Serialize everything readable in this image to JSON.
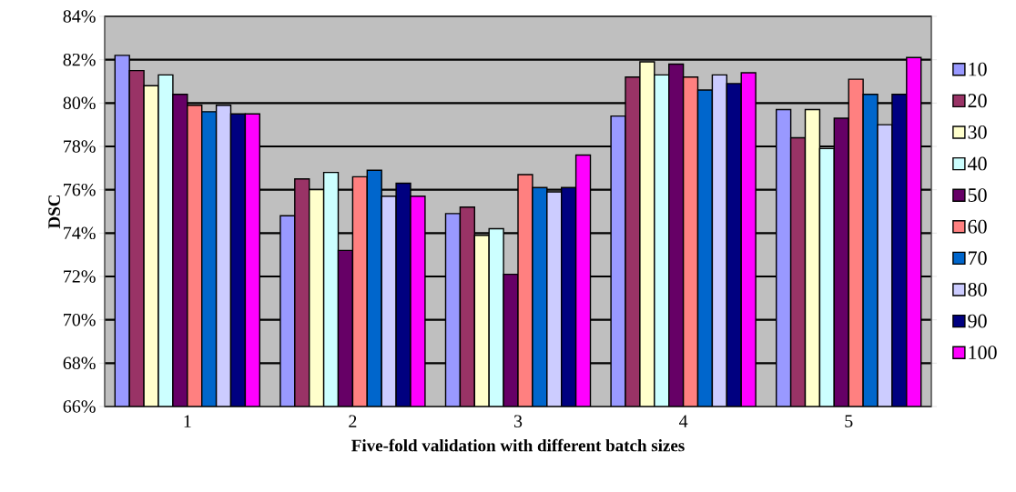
{
  "chart_data": {
    "type": "bar",
    "xlabel": "Five-fold validation with different batch sizes",
    "ylabel": "DSC",
    "categories": [
      "1",
      "2",
      "3",
      "4",
      "5"
    ],
    "series": [
      {
        "name": "10",
        "color": "#9999ff",
        "values": [
          82.2,
          74.8,
          74.9,
          79.4,
          79.7
        ]
      },
      {
        "name": "20",
        "color": "#993366",
        "values": [
          81.5,
          76.5,
          75.2,
          81.2,
          78.4
        ]
      },
      {
        "name": "30",
        "color": "#ffffcc",
        "values": [
          80.8,
          76.0,
          73.9,
          81.9,
          79.7
        ]
      },
      {
        "name": "40",
        "color": "#ccffff",
        "values": [
          81.3,
          76.8,
          74.2,
          81.3,
          77.9
        ]
      },
      {
        "name": "50",
        "color": "#660066",
        "values": [
          80.4,
          73.2,
          72.1,
          81.8,
          79.3
        ]
      },
      {
        "name": "60",
        "color": "#ff8080",
        "values": [
          79.9,
          76.6,
          76.7,
          81.2,
          81.1
        ]
      },
      {
        "name": "70",
        "color": "#0066cc",
        "values": [
          79.6,
          76.9,
          76.1,
          80.6,
          80.4
        ]
      },
      {
        "name": "80",
        "color": "#ccccff",
        "values": [
          79.9,
          75.7,
          75.9,
          81.3,
          79.0
        ]
      },
      {
        "name": "90",
        "color": "#000080",
        "values": [
          79.5,
          76.3,
          76.1,
          80.9,
          80.4
        ]
      },
      {
        "name": "100",
        "color": "#ff00ff",
        "values": [
          79.5,
          75.7,
          77.6,
          81.4,
          82.1
        ]
      }
    ],
    "ylim": [
      66,
      84
    ],
    "yticks": [
      {
        "value": 66,
        "label": "66%"
      },
      {
        "value": 68,
        "label": "68%"
      },
      {
        "value": 70,
        "label": "70%"
      },
      {
        "value": 72,
        "label": "72%"
      },
      {
        "value": 74,
        "label": "74%"
      },
      {
        "value": 76,
        "label": "76%"
      },
      {
        "value": 78,
        "label": "78%"
      },
      {
        "value": 80,
        "label": "80%"
      },
      {
        "value": 82,
        "label": "82%"
      },
      {
        "value": 84,
        "label": "84%"
      }
    ],
    "grid": "y",
    "legend": "right"
  }
}
